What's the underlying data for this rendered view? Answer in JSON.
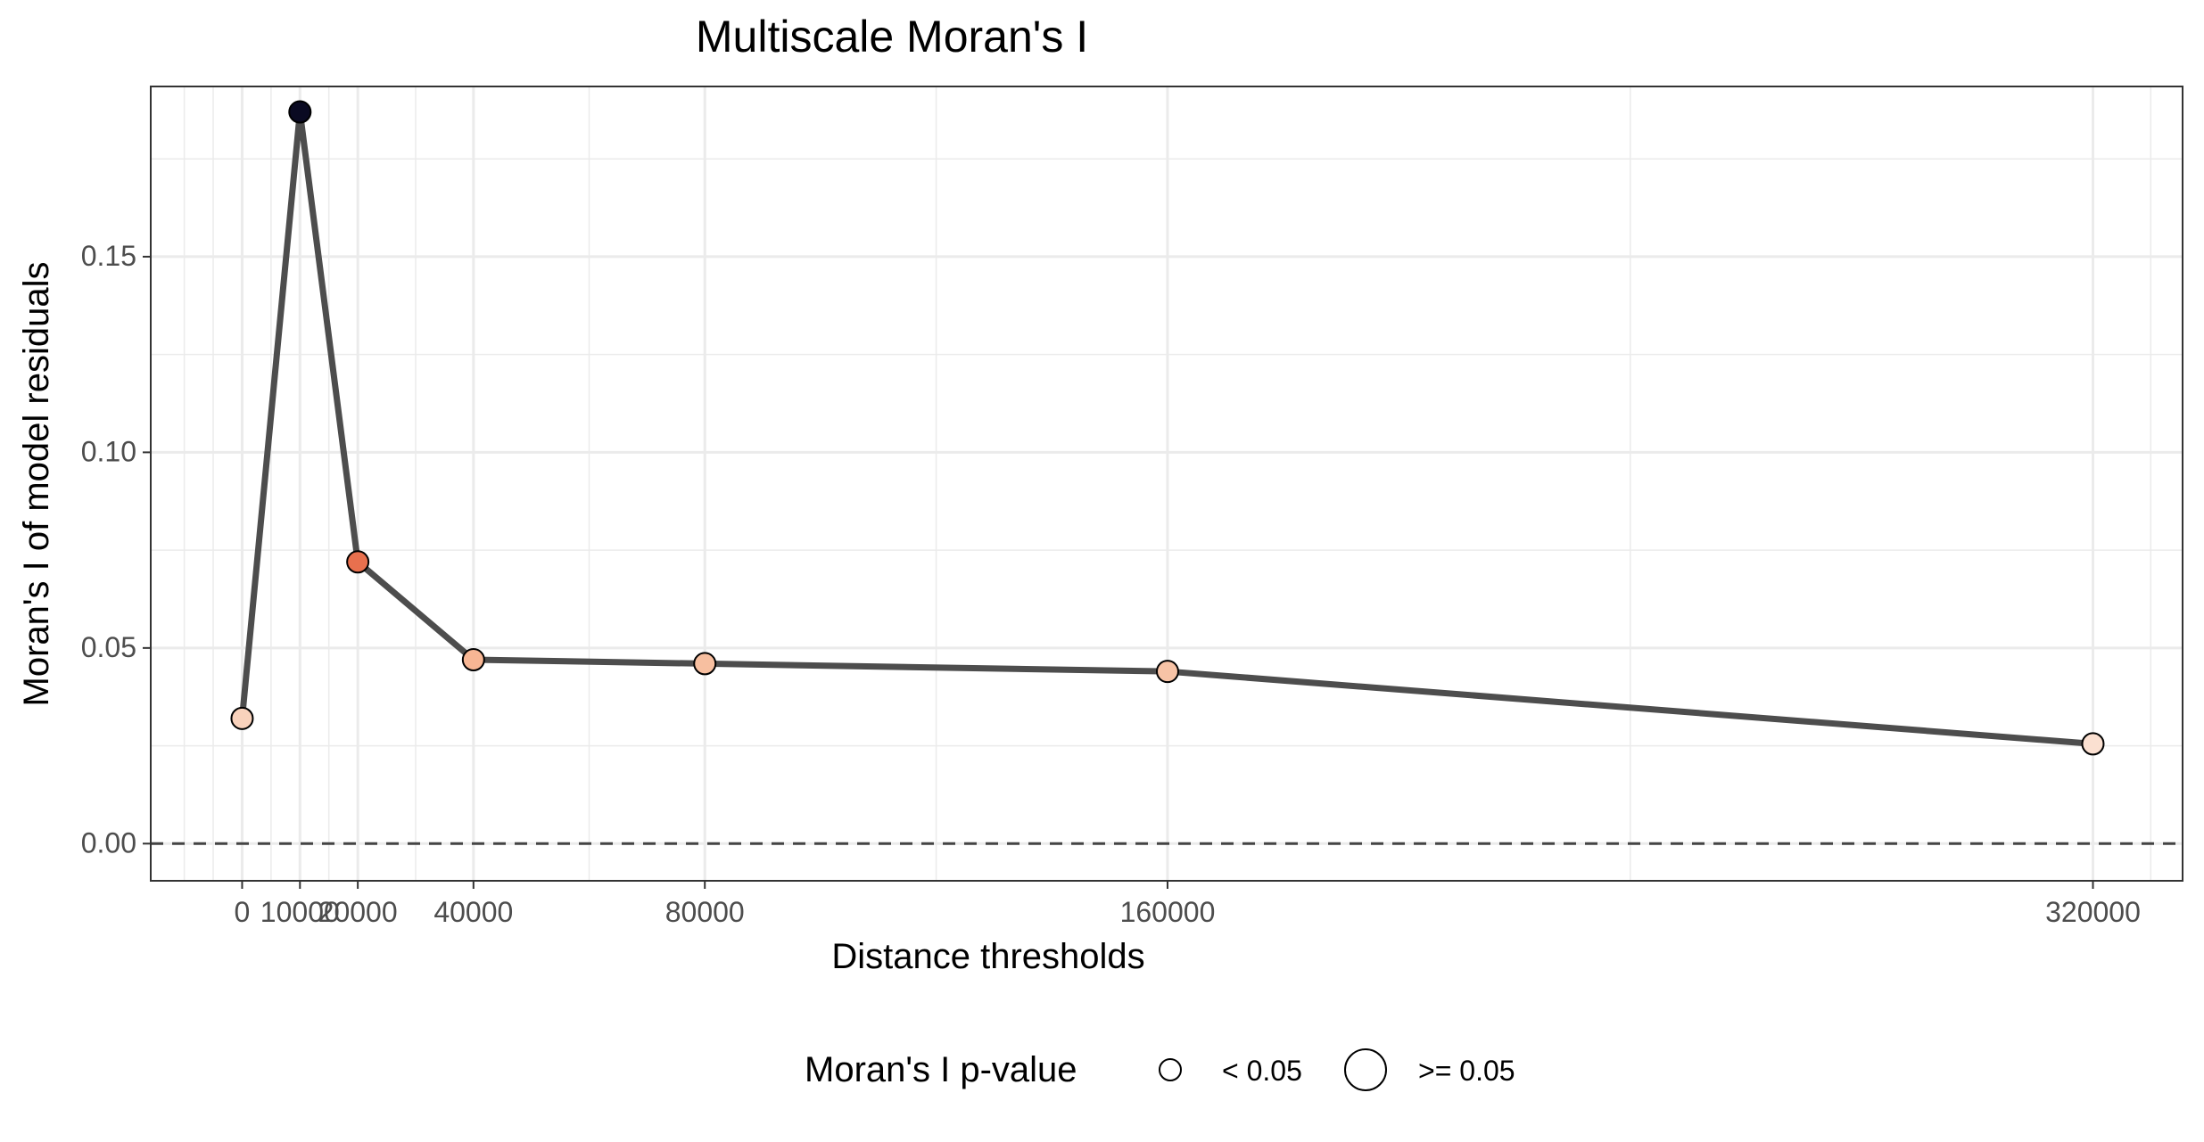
{
  "chart_data": {
    "type": "line",
    "title": "Multiscale Moran's I",
    "xlabel": "Distance thresholds",
    "ylabel": "Moran's I of model residuals",
    "x": [
      0,
      10000,
      20000,
      40000,
      80000,
      160000,
      320000
    ],
    "y": [
      0.032,
      0.187,
      0.072,
      0.047,
      0.046,
      0.044,
      0.0255
    ],
    "point_colors": [
      "#F9D2BC",
      "#0A0A22",
      "#E8704E",
      "#F7B694",
      "#F7BFA0",
      "#F7C3A6",
      "#FBE0D1"
    ],
    "xlim": [
      -15800,
      335500
    ],
    "ylim": [
      -0.0095,
      0.1935
    ],
    "x_ticks": [
      0,
      10000,
      20000,
      40000,
      80000,
      160000,
      320000
    ],
    "x_tick_labels": [
      "0",
      "10000",
      "20000",
      "40000",
      "80000",
      "160000",
      "320000"
    ],
    "x_minor_ticks": [
      -10000,
      -5000,
      5000,
      15000,
      30000,
      60000,
      120000,
      240000,
      330000
    ],
    "y_ticks": [
      0.0,
      0.05,
      0.1,
      0.15
    ],
    "y_tick_labels": [
      "0.00",
      "0.05",
      "0.10",
      "0.15"
    ],
    "y_minor_ticks": [
      0.025,
      0.075,
      0.125,
      0.175
    ],
    "reference_line": {
      "y": 0.0,
      "style": "dashed"
    },
    "grid": true,
    "line_color": "#4D4D4D",
    "legend": {
      "title": "Moran's I p-value",
      "position": "bottom",
      "entries": [
        {
          "label": "< 0.05"
        },
        {
          "label": ">= 0.05"
        }
      ]
    }
  }
}
